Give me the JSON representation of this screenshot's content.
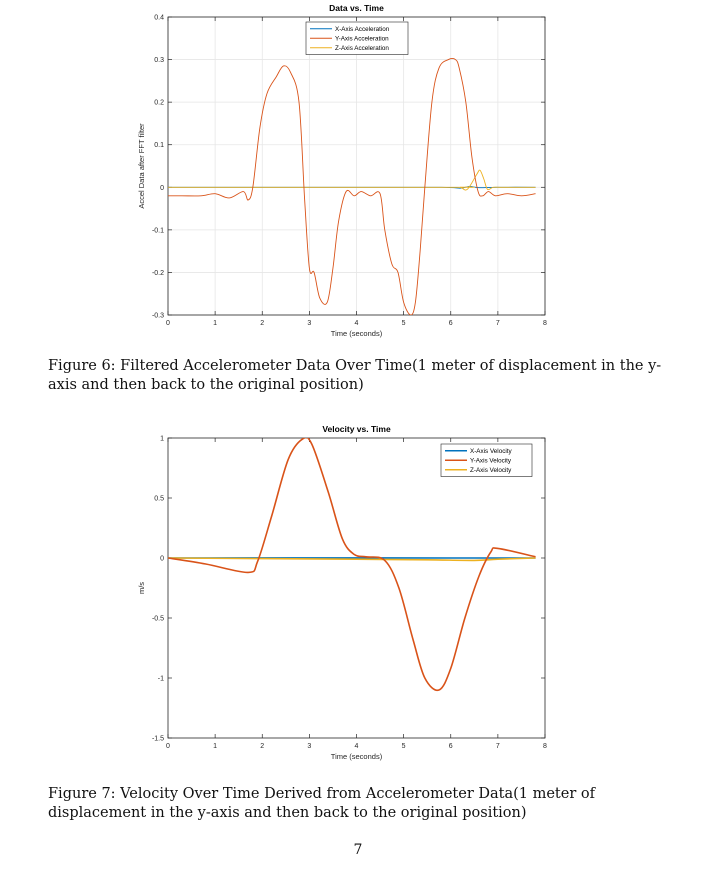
{
  "chart_data": [
    {
      "type": "line",
      "title": "Data vs. Time",
      "xlabel": "Time (seconds)",
      "ylabel": "Accel Data after FFT filter",
      "xlim": [
        0,
        8
      ],
      "ylim": [
        -0.3,
        0.4
      ],
      "xticks": [
        0,
        1,
        2,
        3,
        4,
        5,
        6,
        7,
        8
      ],
      "yticks": [
        -0.3,
        -0.2,
        -0.1,
        0,
        0.1,
        0.2,
        0.3,
        0.4
      ],
      "ytick_labels": [
        "-0.3",
        "-0.2",
        "-0.1",
        "0",
        "0.1",
        "0.2",
        "0.3",
        "0.4"
      ],
      "grid": true,
      "legend_position": "top-center",
      "series": [
        {
          "name": "X-Axis Acceleration",
          "color": "#0072BD",
          "x": [
            0,
            4,
            5.8,
            6.2,
            6.4,
            6.6,
            7.0,
            7.8
          ],
          "y": [
            0,
            0,
            0,
            -0.002,
            0.002,
            -0.001,
            0,
            0
          ]
        },
        {
          "name": "Y-Axis Acceleration",
          "color": "#D95319",
          "x": [
            0,
            0.3,
            0.7,
            1.0,
            1.3,
            1.6,
            1.7,
            1.8,
            1.95,
            2.1,
            2.3,
            2.45,
            2.6,
            2.78,
            2.9,
            3.0,
            3.1,
            3.22,
            3.38,
            3.5,
            3.62,
            3.78,
            3.95,
            4.1,
            4.3,
            4.5,
            4.6,
            4.75,
            4.88,
            5.0,
            5.15,
            5.25,
            5.35,
            5.45,
            5.6,
            5.75,
            5.95,
            6.1,
            6.18,
            6.32,
            6.45,
            6.58,
            6.68,
            6.8,
            6.95,
            7.2,
            7.5,
            7.8
          ],
          "y": [
            -0.02,
            -0.02,
            -0.02,
            -0.015,
            -0.025,
            -0.01,
            -0.03,
            0.0,
            0.14,
            0.22,
            0.26,
            0.285,
            0.27,
            0.2,
            -0.03,
            -0.19,
            -0.2,
            -0.26,
            -0.27,
            -0.19,
            -0.08,
            -0.01,
            -0.02,
            -0.01,
            -0.02,
            -0.015,
            -0.1,
            -0.18,
            -0.2,
            -0.27,
            -0.3,
            -0.27,
            -0.15,
            0.0,
            0.2,
            0.28,
            0.3,
            0.3,
            0.28,
            0.2,
            0.07,
            -0.01,
            -0.02,
            -0.01,
            -0.02,
            -0.015,
            -0.02,
            -0.015
          ]
        },
        {
          "name": "Z-Axis Acceleration",
          "color": "#EDB120",
          "x": [
            0,
            6.0,
            6.2,
            6.35,
            6.55,
            6.62,
            6.7,
            6.78,
            6.9,
            7.1,
            7.8
          ],
          "y": [
            0,
            0,
            0,
            -0.005,
            0.03,
            0.04,
            0.02,
            -0.005,
            0,
            0,
            0
          ]
        }
      ]
    },
    {
      "type": "line",
      "title": "Velocity vs. Time",
      "xlabel": "Time (seconds)",
      "ylabel": "m/s",
      "xlim": [
        0,
        8
      ],
      "ylim": [
        -1.5,
        1
      ],
      "xticks": [
        0,
        1,
        2,
        3,
        4,
        5,
        6,
        7,
        8
      ],
      "yticks": [
        -1.5,
        -1,
        -0.5,
        0,
        0.5,
        1
      ],
      "ytick_labels": [
        "-1.5",
        "-1",
        "-0.5",
        "0",
        "0.5",
        "1"
      ],
      "grid": false,
      "legend_position": "top-right",
      "series": [
        {
          "name": "X-Axis Velocity",
          "color": "#0072BD",
          "x": [
            0,
            3,
            6,
            7.8
          ],
          "y": [
            0,
            0.001,
            0,
            0
          ]
        },
        {
          "name": "Y-Axis Velocity",
          "color": "#D95319",
          "x": [
            0,
            0.8,
            1.7,
            1.9,
            2.2,
            2.55,
            2.85,
            3.05,
            3.4,
            3.7,
            3.95,
            4.2,
            4.6,
            4.9,
            5.2,
            5.45,
            5.75,
            6.0,
            6.3,
            6.6,
            6.85,
            7.0,
            7.8
          ],
          "y": [
            0,
            -0.05,
            -0.12,
            -0.03,
            0.35,
            0.82,
            0.99,
            0.95,
            0.55,
            0.16,
            0.03,
            0.01,
            -0.02,
            -0.25,
            -0.68,
            -1.0,
            -1.1,
            -0.92,
            -0.5,
            -0.15,
            0.05,
            0.08,
            0.01
          ]
        },
        {
          "name": "Z-Axis Velocity",
          "color": "#EDB120",
          "x": [
            0,
            2,
            4,
            5.5,
            6.5,
            7.0,
            7.8
          ],
          "y": [
            0,
            -0.005,
            -0.01,
            -0.015,
            -0.02,
            -0.01,
            0
          ]
        }
      ]
    }
  ],
  "captions": {
    "figure6": "Figure 6: Filtered Accelerometer Data Over Time(1 meter of displacement in the y-axis and then back to the original position)",
    "figure7": "Figure 7: Velocity Over Time Derived from Accelerometer Data(1 meter of displacement in the y-axis and then back to the original position)"
  },
  "page_number": "7"
}
